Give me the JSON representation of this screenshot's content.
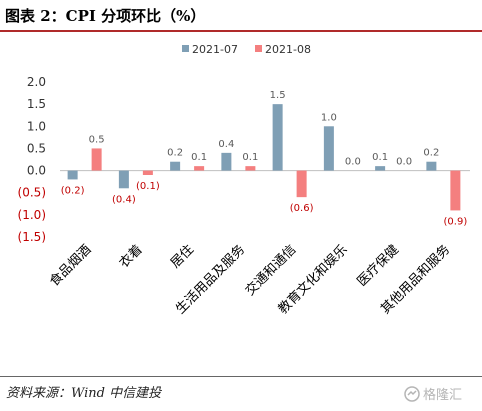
{
  "header": {
    "title": "图表 2：CPI 分项环比（%）"
  },
  "footer": {
    "source": "资料来源：Wind    中信建投",
    "watermark": "格隆汇"
  },
  "colors": {
    "series1": "#7f9fb5",
    "series2": "#f47f7f",
    "negative_label": "#c00000",
    "positive_label": "#595959",
    "rule": "#b02a2a"
  },
  "chart_data": {
    "type": "bar",
    "categories": [
      "食品烟酒",
      "衣着",
      "居住",
      "生活用品及服务",
      "交通和通信",
      "教育文化和娱乐",
      "医疗保健",
      "其他用品和服务"
    ],
    "series": [
      {
        "name": "2021-07",
        "values": [
          -0.2,
          -0.4,
          0.2,
          0.4,
          1.5,
          1.0,
          0.1,
          0.2
        ],
        "labels": [
          "(0.2)",
          "(0.4)",
          "0.2",
          "0.4",
          "1.5",
          "1.0",
          "0.1",
          "0.2"
        ]
      },
      {
        "name": "2021-08",
        "values": [
          0.5,
          -0.1,
          0.1,
          0.1,
          -0.6,
          0.0,
          0.0,
          -0.9
        ],
        "labels": [
          "0.5",
          "(0.1)",
          "0.1",
          "0.1",
          "(0.6)",
          "0.0",
          "0.0",
          "(0.9)"
        ]
      }
    ],
    "ylim": [
      -1.5,
      2.0
    ],
    "yticks": [
      2.0,
      1.5,
      1.0,
      0.5,
      0.0,
      -0.5,
      -1.0,
      -1.5
    ],
    "ytick_labels": [
      "2.0",
      "1.5",
      "1.0",
      "0.5",
      "0.0",
      "(0.5)",
      "(1.0)",
      "(1.5)"
    ],
    "legend_position": "top-center",
    "grid": false
  }
}
